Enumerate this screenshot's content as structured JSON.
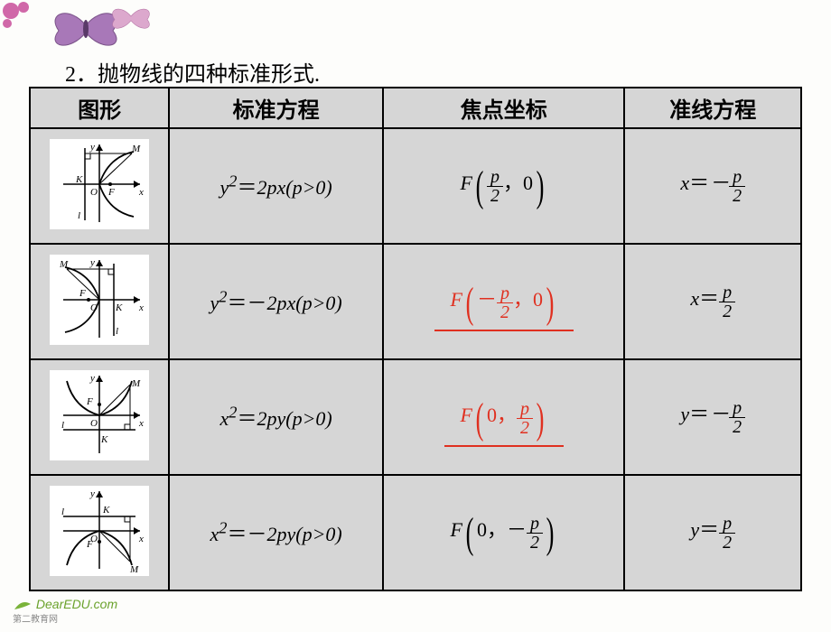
{
  "title": "2．抛物线的四种标准形式.",
  "headers": {
    "shape": "图形",
    "equation": "标准方程",
    "focus": "焦点坐标",
    "directrix": "准线方程"
  },
  "rows": [
    {
      "equation_html": "<span class='eq'>y<sup>2</sup><span class='up'>＝</span>2px(p&gt;0)</span>",
      "focus_html": "<span class='focus-box'><span style='font-style:italic;font-size:22px;'>F</span><span class='bigparen'>(</span><span class='frac'><span class='num'>p</span><span class='den'>2</span></span><span style='font-size:22px;'>，0</span><span class='bigparen'>)</span></span>",
      "directrix_html": "<span class='eq'>x<span class='up'>＝</span>－</span><span class='frac'><span class='num'>p</span><span class='den'>2</span></span>",
      "focus_red": false,
      "shape": "right"
    },
    {
      "equation_html": "<span class='eq'>y<sup>2</sup><span class='up'>＝－</span>2px(p&gt;0)</span>",
      "focus_html": "<span class='focus-box red'><span style='font-style:italic;font-size:22px;'>F</span><span class='bigparen'>(</span><span style='font-size:22px;'>－</span><span class='frac'><span class='num'>p</span><span class='den'>2</span></span><span style='font-size:22px;'>，0</span><span class='bigparen'>)</span></span>",
      "directrix_html": "<span class='eq'>x<span class='up'>＝</span></span><span class='frac'><span class='num'>p</span><span class='den'>2</span></span>",
      "focus_red": true,
      "shape": "left"
    },
    {
      "equation_html": "<span class='eq'>x<sup>2</sup><span class='up'>＝</span>2py(p&gt;0)</span>",
      "focus_html": "<span class='focus-box red'><span style='font-style:italic;font-size:22px;'>F</span><span class='bigparen'>(</span><span style='font-size:22px;'>0，</span><span class='frac'><span class='num'>p</span><span class='den'>2</span></span><span class='bigparen'>)</span></span>",
      "directrix_html": "<span class='eq'>y<span class='up'>＝</span>－</span><span class='frac'><span class='num'>p</span><span class='den'>2</span></span>",
      "focus_red": true,
      "shape": "up"
    },
    {
      "equation_html": "<span class='eq'>x<sup>2</sup><span class='up'>＝－</span>2py(p&gt;0)</span>",
      "focus_html": "<span class='focus-box'><span style='font-style:italic;font-size:22px;'>F</span><span class='bigparen'>(</span><span style='font-size:22px;'>0，－</span><span class='frac'><span class='num'>p</span><span class='den'>2</span></span><span class='bigparen'>)</span></span>",
      "directrix_html": "<span class='eq'>y<span class='up'>＝</span></span><span class='frac'><span class='num'>p</span><span class='den'>2</span></span>",
      "focus_red": false,
      "shape": "down"
    }
  ],
  "logo": {
    "main": "DearEDU.com",
    "sub": "第二教育网"
  },
  "colors": {
    "table_bg": "#d6d6d6",
    "border": "#000000",
    "red": "#e03020",
    "butterfly1": "#9b6aa8",
    "butterfly2": "#d890c0",
    "flower": "#c94f9a"
  }
}
